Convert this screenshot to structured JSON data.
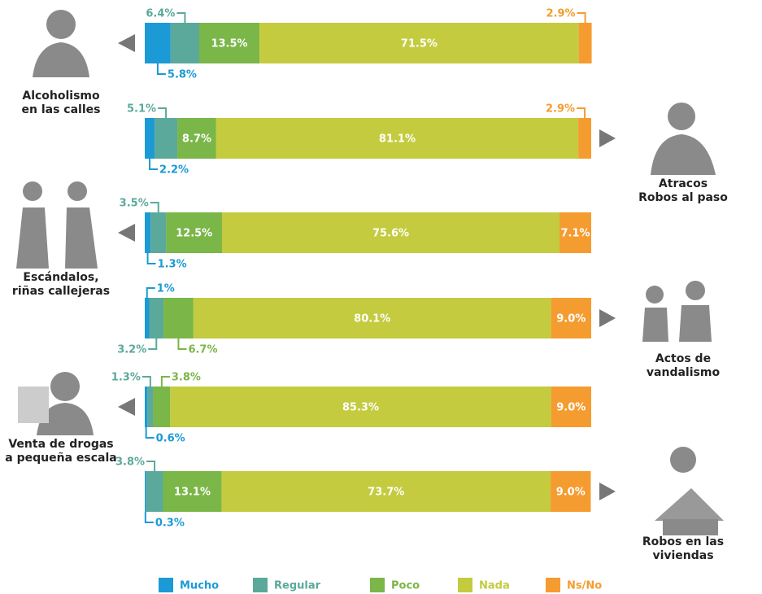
{
  "chart_data": {
    "type": "bar",
    "orientation": "horizontal",
    "stacked": true,
    "categories": [
      "Alcoholismo\nen las calles",
      "Atracos\nRobos al paso",
      "Escándalos,\nriñas callejeras",
      "Actos de\nvandalismo",
      "Venta de drogas\na pequeña escala",
      "Robos en las\nviviendas"
    ],
    "xlim": [
      0,
      100
    ],
    "series": [
      {
        "name": "Mucho",
        "color": "#1b9ad6",
        "values": [
          5.8,
          2.2,
          1.3,
          1,
          0.6,
          0.3
        ],
        "value_labels": [
          "5.8%",
          "2.2%",
          "1.3%",
          "1%",
          "0.6%",
          "0.3%"
        ]
      },
      {
        "name": "Regular",
        "color": "#5ba99a",
        "values": [
          6.4,
          5.1,
          3.5,
          3.2,
          1.3,
          3.8
        ],
        "value_labels": [
          "6.4%",
          "5.1%",
          "3.5%",
          "3.2%",
          "1.3%",
          "3.8%"
        ]
      },
      {
        "name": "Poco",
        "color": "#7ab648",
        "values": [
          13.5,
          8.7,
          12.5,
          6.7,
          3.8,
          13.1
        ],
        "value_labels": [
          "13.5%",
          "8.7%",
          "12.5%",
          "6.7%",
          "3.8%",
          "13.1%"
        ]
      },
      {
        "name": "Nada",
        "color": "#c4cb3f",
        "values": [
          71.5,
          81.1,
          75.6,
          80.1,
          85.3,
          73.7
        ],
        "value_labels": [
          "71.5%",
          "81.1%",
          "75.6%",
          "80.1%",
          "85.3%",
          "73.7%"
        ]
      },
      {
        "name": "Ns/No",
        "color": "#f59c30",
        "values": [
          2.9,
          2.9,
          7.1,
          9.0,
          9.0,
          9.0
        ],
        "value_labels": [
          "2.9%",
          "2.9%",
          "7.1%",
          "9.0%",
          "9.0%",
          "9.0%"
        ]
      }
    ]
  }
}
